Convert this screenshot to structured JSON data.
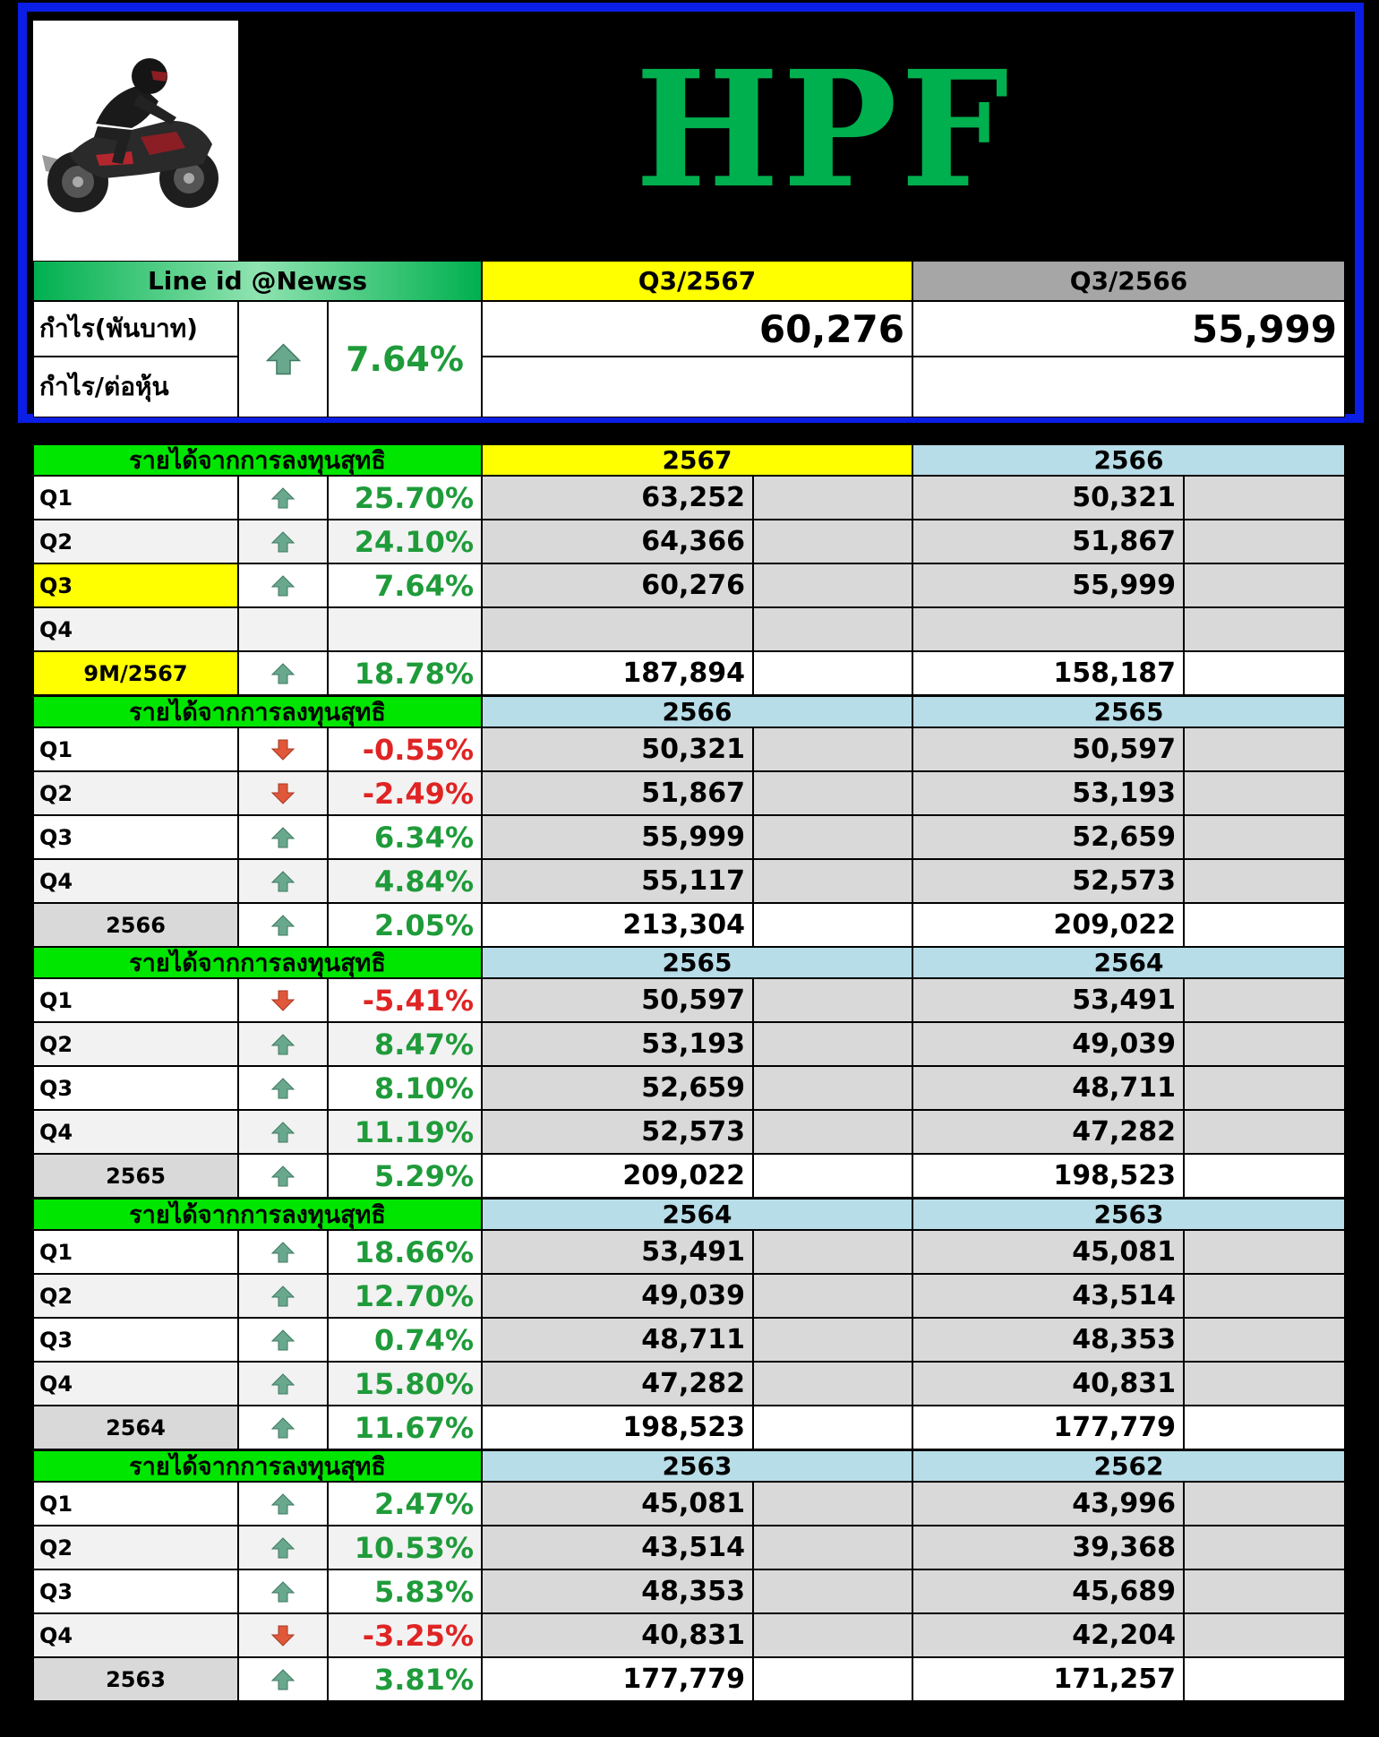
{
  "title": "HPF",
  "header": {
    "line_id": "Line id @Newss",
    "col_a": "Q3/2567",
    "col_b": "Q3/2566",
    "row1_label": "กำไร(พันบาท)",
    "row2_label": "กำไร/ต่อหุ้น",
    "change_pct": "7.64%",
    "change_dir": "up",
    "val_a": "60,276",
    "val_b": "55,999"
  },
  "sections": [
    {
      "label": "รายได้จากการลงทุนสุทธิ",
      "year_a": "2567",
      "year_b": "2566",
      "rows": [
        {
          "label": "Q1",
          "dir": "up",
          "pct": "25.70%",
          "a": "63,252",
          "b": "50,321"
        },
        {
          "label": "Q2",
          "dir": "up",
          "pct": "24.10%",
          "a": "64,366",
          "b": "51,867"
        },
        {
          "label": "Q3",
          "dir": "up",
          "pct": "7.64%",
          "a": "60,276",
          "b": "55,999"
        },
        {
          "label": "Q4",
          "dir": "",
          "pct": "",
          "a": "",
          "b": ""
        }
      ],
      "total": {
        "label": "9M/2567",
        "dir": "up",
        "pct": "18.78%",
        "a": "187,894",
        "b": "158,187"
      }
    },
    {
      "label": "รายได้จากการลงทุนสุทธิ",
      "year_a": "2566",
      "year_b": "2565",
      "rows": [
        {
          "label": "Q1",
          "dir": "down",
          "pct": "-0.55%",
          "a": "50,321",
          "b": "50,597"
        },
        {
          "label": "Q2",
          "dir": "down",
          "pct": "-2.49%",
          "a": "51,867",
          "b": "53,193"
        },
        {
          "label": "Q3",
          "dir": "up",
          "pct": "6.34%",
          "a": "55,999",
          "b": "52,659"
        },
        {
          "label": "Q4",
          "dir": "up",
          "pct": "4.84%",
          "a": "55,117",
          "b": "52,573"
        }
      ],
      "total": {
        "label": "2566",
        "dir": "up",
        "pct": "2.05%",
        "a": "213,304",
        "b": "209,022"
      }
    },
    {
      "label": "รายได้จากการลงทุนสุทธิ",
      "year_a": "2565",
      "year_b": "2564",
      "rows": [
        {
          "label": "Q1",
          "dir": "down",
          "pct": "-5.41%",
          "a": "50,597",
          "b": "53,491"
        },
        {
          "label": "Q2",
          "dir": "up",
          "pct": "8.47%",
          "a": "53,193",
          "b": "49,039"
        },
        {
          "label": "Q3",
          "dir": "up",
          "pct": "8.10%",
          "a": "52,659",
          "b": "48,711"
        },
        {
          "label": "Q4",
          "dir": "up",
          "pct": "11.19%",
          "a": "52,573",
          "b": "47,282"
        }
      ],
      "total": {
        "label": "2565",
        "dir": "up",
        "pct": "5.29%",
        "a": "209,022",
        "b": "198,523"
      }
    },
    {
      "label": "รายได้จากการลงทุนสุทธิ",
      "year_a": "2564",
      "year_b": "2563",
      "rows": [
        {
          "label": "Q1",
          "dir": "up",
          "pct": "18.66%",
          "a": "53,491",
          "b": "45,081"
        },
        {
          "label": "Q2",
          "dir": "up",
          "pct": "12.70%",
          "a": "49,039",
          "b": "43,514"
        },
        {
          "label": "Q3",
          "dir": "up",
          "pct": "0.74%",
          "a": "48,711",
          "b": "48,353"
        },
        {
          "label": "Q4",
          "dir": "up",
          "pct": "15.80%",
          "a": "47,282",
          "b": "40,831"
        }
      ],
      "total": {
        "label": "2564",
        "dir": "up",
        "pct": "11.67%",
        "a": "198,523",
        "b": "177,779"
      }
    },
    {
      "label": "รายได้จากการลงทุนสุทธิ",
      "year_a": "2563",
      "year_b": "2562",
      "rows": [
        {
          "label": "Q1",
          "dir": "up",
          "pct": "2.47%",
          "a": "45,081",
          "b": "43,996"
        },
        {
          "label": "Q2",
          "dir": "up",
          "pct": "10.53%",
          "a": "43,514",
          "b": "39,368"
        },
        {
          "label": "Q3",
          "dir": "up",
          "pct": "5.83%",
          "a": "48,353",
          "b": "45,689"
        },
        {
          "label": "Q4",
          "dir": "down",
          "pct": "-3.25%",
          "a": "40,831",
          "b": "42,204"
        }
      ],
      "total": {
        "label": "2563",
        "dir": "up",
        "pct": "3.81%",
        "a": "177,779",
        "b": "171,257"
      }
    }
  ],
  "colors": {
    "green_header": "#00e600",
    "yellow": "#ffff00",
    "light_blue": "#b7dde8",
    "grey": "#d9d9d9",
    "light_grey": "#f2f2f2",
    "positive": "#1f9b3a",
    "negative": "#e02424",
    "arrow_up": "#6aa88e",
    "arrow_down": "#e0573a",
    "frame": "#0a1ee6"
  }
}
